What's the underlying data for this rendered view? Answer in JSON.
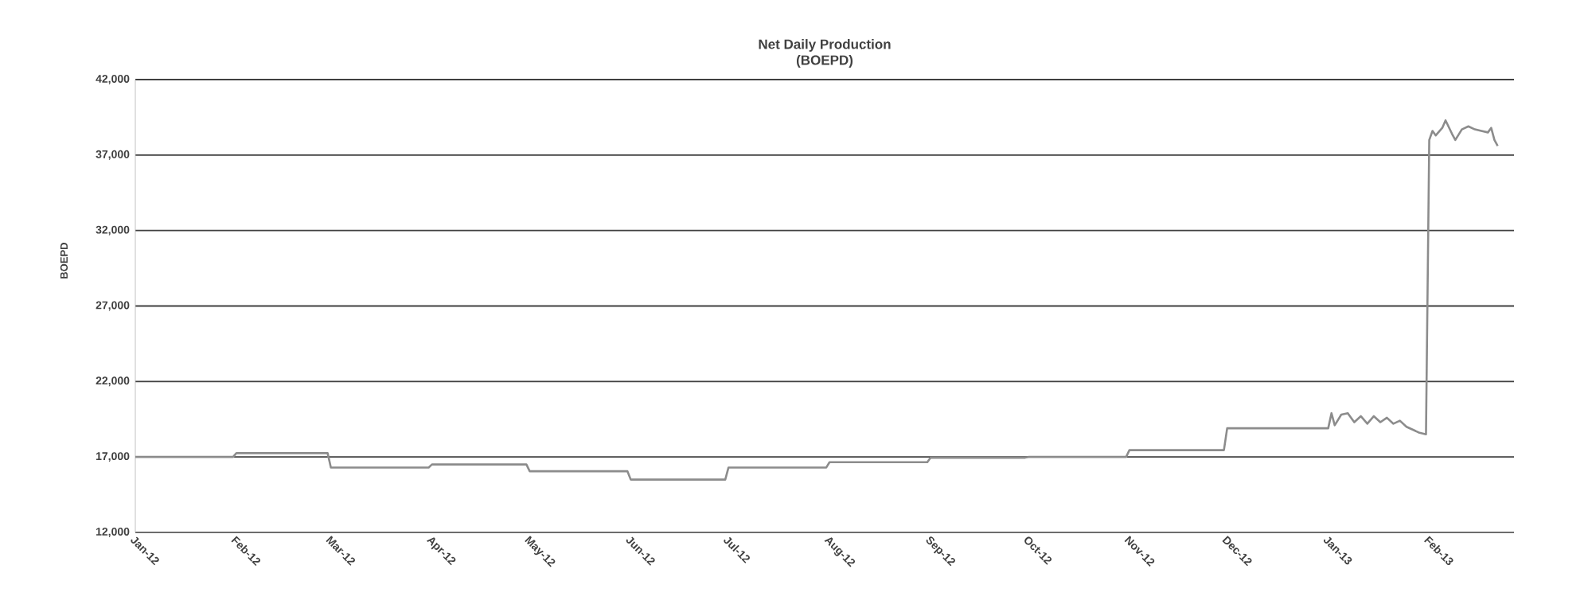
{
  "chart_data": {
    "type": "line",
    "title": "Net Daily Production",
    "subtitle": "(BOEPD)",
    "ylabel": "BOEPD",
    "ylim": [
      12000,
      42000
    ],
    "yticks": [
      {
        "value": 12000,
        "label": "12,000"
      },
      {
        "value": 17000,
        "label": "17,000"
      },
      {
        "value": 22000,
        "label": "22,000"
      },
      {
        "value": 27000,
        "label": "27,000"
      },
      {
        "value": 32000,
        "label": "32,000"
      },
      {
        "value": 37000,
        "label": "37,000"
      },
      {
        "value": 42000,
        "label": "42,000"
      }
    ],
    "xlim": [
      "2012-01-01",
      "2013-02-27"
    ],
    "xticks": [
      {
        "value": "2012-01-01",
        "label": "Jan-12"
      },
      {
        "value": "2012-02-01",
        "label": "Feb-12"
      },
      {
        "value": "2012-03-01",
        "label": "Mar-12"
      },
      {
        "value": "2012-04-01",
        "label": "Apr-12"
      },
      {
        "value": "2012-05-01",
        "label": "May-12"
      },
      {
        "value": "2012-06-01",
        "label": "Jun-12"
      },
      {
        "value": "2012-07-01",
        "label": "Jul-12"
      },
      {
        "value": "2012-08-01",
        "label": "Aug-12"
      },
      {
        "value": "2012-09-01",
        "label": "Sep-12"
      },
      {
        "value": "2012-10-01",
        "label": "Oct-12"
      },
      {
        "value": "2012-11-01",
        "label": "Nov-12"
      },
      {
        "value": "2012-12-01",
        "label": "Dec-12"
      },
      {
        "value": "2013-01-01",
        "label": "Jan-13"
      },
      {
        "value": "2013-02-01",
        "label": "Feb-13"
      }
    ],
    "grid": "y",
    "series": [
      {
        "color": "#8c8c8c",
        "x": [
          "2012-01-01",
          "2012-01-31",
          "2012-02-01",
          "2012-02-29",
          "2012-03-01",
          "2012-03-31",
          "2012-04-01",
          "2012-04-30",
          "2012-05-01",
          "2012-05-31",
          "2012-06-01",
          "2012-06-30",
          "2012-07-01",
          "2012-07-31",
          "2012-08-01",
          "2012-08-31",
          "2012-09-01",
          "2012-09-30",
          "2012-10-01",
          "2012-10-31",
          "2012-11-01",
          "2012-11-30",
          "2012-12-01",
          "2012-12-31",
          "2013-01-01",
          "2013-01-02",
          "2013-01-03",
          "2013-01-05",
          "2013-01-07",
          "2013-01-09",
          "2013-01-11",
          "2013-01-13",
          "2013-01-15",
          "2013-01-17",
          "2013-01-19",
          "2013-01-21",
          "2013-01-23",
          "2013-01-25",
          "2013-01-27",
          "2013-01-29",
          "2013-01-31",
          "2013-02-01",
          "2013-02-02",
          "2013-02-03",
          "2013-02-05",
          "2013-02-06",
          "2013-02-08",
          "2013-02-09",
          "2013-02-11",
          "2013-02-13",
          "2013-02-15",
          "2013-02-17",
          "2013-02-19",
          "2013-02-20",
          "2013-02-21",
          "2013-02-22"
        ],
        "values": [
          17000,
          17000,
          17250,
          17250,
          16300,
          16300,
          16500,
          16500,
          16050,
          16050,
          15500,
          15500,
          16300,
          16300,
          16650,
          16650,
          16950,
          16950,
          17000,
          17000,
          17450,
          17450,
          18900,
          18900,
          18900,
          19900,
          19100,
          19800,
          19900,
          19300,
          19700,
          19200,
          19700,
          19300,
          19600,
          19200,
          19400,
          19000,
          18800,
          18600,
          18500,
          38000,
          38600,
          38300,
          38800,
          39300,
          38400,
          38000,
          38700,
          38900,
          38700,
          38600,
          38500,
          38800,
          38000,
          37600
        ]
      }
    ]
  }
}
